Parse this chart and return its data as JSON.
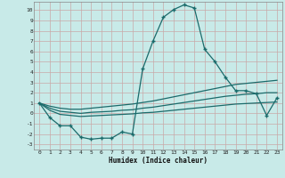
{
  "xlabel": "Humidex (Indice chaleur)",
  "background_color": "#c8eae8",
  "grid_color": "#b8d8d5",
  "line_color": "#1a6b6b",
  "xlim": [
    -0.5,
    23.5
  ],
  "ylim": [
    -3.5,
    10.8
  ],
  "yticks": [
    -3,
    -2,
    -1,
    0,
    1,
    2,
    3,
    4,
    5,
    6,
    7,
    8,
    9,
    10
  ],
  "xticks": [
    0,
    1,
    2,
    3,
    4,
    5,
    6,
    7,
    8,
    9,
    10,
    11,
    12,
    13,
    14,
    15,
    16,
    17,
    18,
    19,
    20,
    21,
    22,
    23
  ],
  "main_line": [
    1.0,
    -0.4,
    -1.2,
    -1.2,
    -2.3,
    -2.5,
    -2.4,
    -2.4,
    -1.8,
    -2.0,
    4.3,
    7.0,
    9.3,
    10.05,
    10.5,
    10.2,
    6.2,
    5.0,
    3.5,
    2.2,
    2.2,
    1.9,
    -0.2,
    1.5
  ],
  "upper_line1": [
    1.0,
    0.7,
    0.5,
    0.4,
    0.4,
    0.5,
    0.6,
    0.7,
    0.8,
    0.9,
    1.05,
    1.2,
    1.4,
    1.6,
    1.8,
    2.0,
    2.2,
    2.4,
    2.6,
    2.8,
    2.9,
    3.0,
    3.1,
    3.2
  ],
  "upper_line2": [
    1.0,
    0.5,
    0.2,
    0.1,
    0.0,
    0.1,
    0.15,
    0.2,
    0.3,
    0.35,
    0.5,
    0.6,
    0.75,
    0.9,
    1.05,
    1.2,
    1.35,
    1.5,
    1.65,
    1.75,
    1.85,
    1.9,
    2.0,
    2.0
  ],
  "lower_line": [
    1.0,
    0.3,
    -0.1,
    -0.2,
    -0.3,
    -0.25,
    -0.2,
    -0.15,
    -0.1,
    -0.05,
    0.05,
    0.1,
    0.2,
    0.3,
    0.4,
    0.5,
    0.6,
    0.7,
    0.8,
    0.9,
    0.95,
    1.0,
    1.05,
    1.1
  ]
}
